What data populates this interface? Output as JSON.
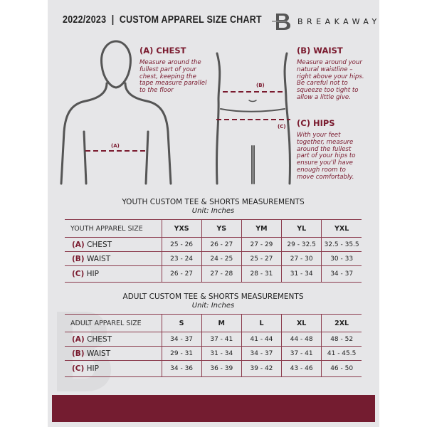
{
  "header": {
    "title": "2022/2023  |  CUSTOM APPAREL SIZE CHART",
    "brand": "BREAKAWAY",
    "logo_letter": "B"
  },
  "measures": {
    "chest": {
      "title": "(A) CHEST",
      "desc": "Measure around the fullest part of your chest, keeping the tape measure parallel to the floor",
      "marker": "(A)"
    },
    "waist": {
      "title": "(B) WAIST",
      "desc": "Measure around your natural waistline – right above your hips. Be careful not to squeeze too tight to allow a little give.",
      "marker": "(B)"
    },
    "hips": {
      "title": "(C) HIPS",
      "desc": "With your feet together, measure around the fullest part of your hips to ensure you'll have enough room to move comfortably.",
      "marker": "(C)"
    }
  },
  "youth": {
    "title": "YOUTH CUSTOM TEE & SHORTS MEASUREMENTS",
    "unit": "Unit: Inches",
    "header": [
      "YOUTH APPAREL SIZE",
      "YXS",
      "YS",
      "YM",
      "YL",
      "YXL"
    ],
    "rows": [
      {
        "letter": "(A)",
        "label": "CHEST",
        "values": [
          "25 - 26",
          "26 - 27",
          "27 - 29",
          "29 - 32.5",
          "32.5 - 35.5"
        ]
      },
      {
        "letter": "(B)",
        "label": "WAIST",
        "values": [
          "23 - 24",
          "24 - 25",
          "25 - 27",
          "27 - 30",
          "30 - 33"
        ]
      },
      {
        "letter": "(C)",
        "label": "HIP",
        "values": [
          "26 - 27",
          "27 - 28",
          "28 - 31",
          "31 - 34",
          "34 - 37"
        ]
      }
    ]
  },
  "adult": {
    "title": "ADULT CUSTOM TEE & SHORTS MEASUREMENTS",
    "unit": "Unit: Inches",
    "header": [
      "ADULT APPAREL SIZE",
      "S",
      "M",
      "L",
      "XL",
      "2XL"
    ],
    "rows": [
      {
        "letter": "(A)",
        "label": "CHEST",
        "values": [
          "34 - 37",
          "37 - 41",
          "41 - 44",
          "44 - 48",
          "48 - 52"
        ]
      },
      {
        "letter": "(B)",
        "label": "WAIST",
        "values": [
          "29 - 31",
          "31 - 34",
          "34 - 37",
          "37 - 41",
          "41 - 45.5"
        ]
      },
      {
        "letter": "(C)",
        "label": "HIP",
        "values": [
          "34 - 36",
          "36 - 39",
          "39 - 42",
          "43 - 46",
          "46 - 50"
        ]
      }
    ]
  },
  "colors": {
    "accent": "#741c30",
    "page": "#e6e6e8"
  }
}
